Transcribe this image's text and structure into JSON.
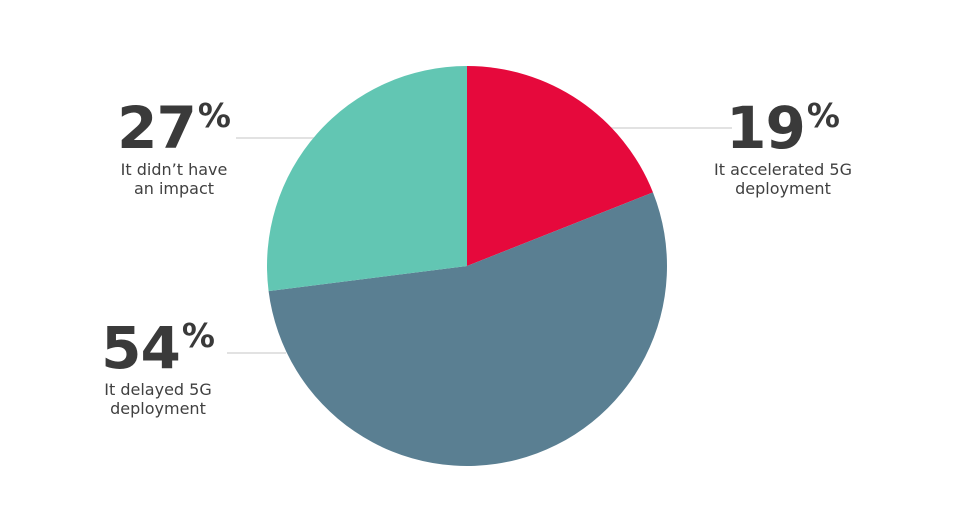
{
  "chart_data": {
    "type": "pie",
    "title": "",
    "unit": "%",
    "direction": "clockwise",
    "start_position": "12-oclock",
    "legend_position": "callout-labels",
    "slices": [
      {
        "id": "accelerated",
        "label": "It accelerated 5G deployment",
        "value": 19,
        "color": "#e6093c"
      },
      {
        "id": "delayed",
        "label": "It delayed 5G deployment",
        "value": 54,
        "color": "#5a7f92"
      },
      {
        "id": "no-impact",
        "label": "It didn’t have an impact",
        "value": 27,
        "color": "#62c6b3"
      }
    ]
  },
  "callouts": {
    "no_impact": {
      "percent": "27",
      "suffix": "%",
      "line1": "It didn’t have",
      "line2": "an impact"
    },
    "accelerated": {
      "percent": "19",
      "suffix": "%",
      "line1": "It accelerated 5G",
      "line2": "deployment"
    },
    "delayed": {
      "percent": "54",
      "suffix": "%",
      "line1": "It delayed 5G",
      "line2": "deployment"
    }
  },
  "colors": {
    "accent_red": "#e6093c",
    "slate_blue": "#5a7f92",
    "teal": "#62c6b3",
    "number_text": "#3a3a3a",
    "label_text": "#404040",
    "leader_line": "#d9d9d9",
    "background": "#ffffff"
  }
}
